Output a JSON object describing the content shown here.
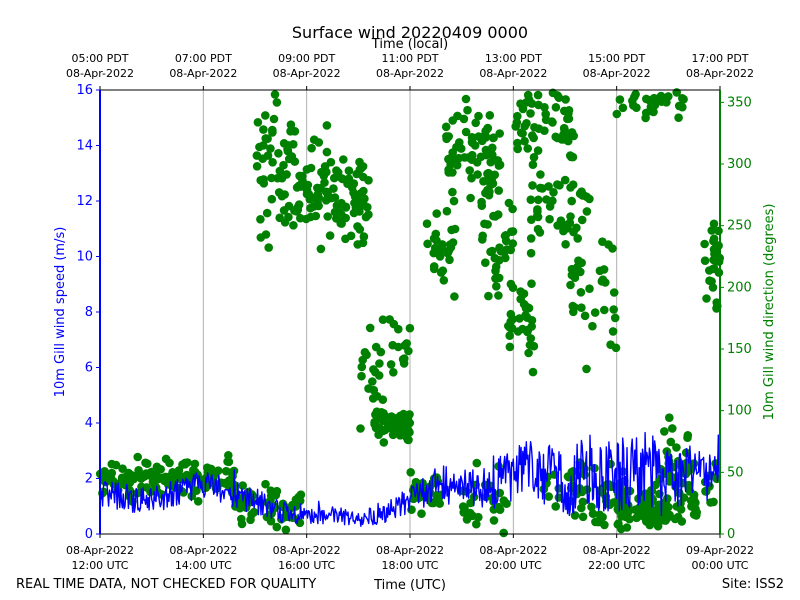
{
  "chart_data": {
    "type": "line+scatter",
    "title": "Surface wind 20220409 0000",
    "top_axis_label": "Time (local)",
    "xlabel": "Time (UTC)",
    "ylabel_left": "10m Gill wind speed (m/s)",
    "ylabel_right": "10m Gill wind direction (degrees)",
    "footer_left": "REAL TIME DATA, NOT CHECKED FOR QUALITY",
    "footer_right": "Site: ISS2",
    "x_range_hours": [
      12,
      24
    ],
    "ylim_left": [
      0,
      16
    ],
    "ylim_right": [
      0,
      360
    ],
    "grid": "vertical",
    "colors": {
      "speed": "#0000ff",
      "direction": "#008000",
      "axis": "#000000",
      "grid": "#b0b0b0"
    },
    "bottom_ticks": [
      {
        "t": 12,
        "date": "08-Apr-2022",
        "time": "12:00 UTC"
      },
      {
        "t": 14,
        "date": "08-Apr-2022",
        "time": "14:00 UTC"
      },
      {
        "t": 16,
        "date": "08-Apr-2022",
        "time": "16:00 UTC"
      },
      {
        "t": 18,
        "date": "08-Apr-2022",
        "time": "18:00 UTC"
      },
      {
        "t": 20,
        "date": "08-Apr-2022",
        "time": "20:00 UTC"
      },
      {
        "t": 22,
        "date": "08-Apr-2022",
        "time": "22:00 UTC"
      },
      {
        "t": 24,
        "date": "09-Apr-2022",
        "time": "00:00 UTC"
      }
    ],
    "top_ticks": [
      {
        "t": 12,
        "time": "05:00 PDT",
        "date": "08-Apr-2022"
      },
      {
        "t": 14,
        "time": "07:00 PDT",
        "date": "08-Apr-2022"
      },
      {
        "t": 16,
        "time": "09:00 PDT",
        "date": "08-Apr-2022"
      },
      {
        "t": 18,
        "time": "11:00 PDT",
        "date": "08-Apr-2022"
      },
      {
        "t": 20,
        "time": "13:00 PDT",
        "date": "08-Apr-2022"
      },
      {
        "t": 22,
        "time": "15:00 PDT",
        "date": "08-Apr-2022"
      },
      {
        "t": 24,
        "time": "17:00 PDT",
        "date": "08-Apr-2022"
      }
    ],
    "left_ticks": [
      0,
      2,
      4,
      6,
      8,
      10,
      12,
      14,
      16
    ],
    "right_ticks": [
      0,
      50,
      100,
      150,
      200,
      250,
      300,
      350
    ],
    "speed_series": {
      "name": "Wind speed (m/s)",
      "t": [
        12.0,
        12.5,
        13.0,
        13.5,
        14.0,
        14.5,
        15.0,
        15.5,
        16.0,
        16.5,
        17.0,
        17.5,
        18.0,
        18.5,
        19.0,
        19.5,
        20.0,
        20.5,
        21.0,
        21.5,
        22.0,
        22.5,
        23.0,
        23.5,
        24.0
      ],
      "v": [
        1.5,
        1.3,
        1.2,
        1.5,
        1.8,
        1.5,
        1.2,
        0.8,
        0.6,
        0.7,
        0.5,
        0.8,
        1.2,
        1.8,
        1.7,
        1.6,
        2.2,
        2.3,
        1.7,
        2.4,
        1.9,
        2.6,
        1.8,
        2.3,
        1.9
      ],
      "amp": [
        0.5,
        0.5,
        0.5,
        0.5,
        0.5,
        0.5,
        0.5,
        0.4,
        0.3,
        0.3,
        0.3,
        0.4,
        0.5,
        0.7,
        0.7,
        0.8,
        1.0,
        1.2,
        1.1,
        1.4,
        1.4,
        1.5,
        1.3,
        1.0,
        0.8
      ]
    },
    "direction_series": {
      "name": "Wind direction (degrees)",
      "clusters": [
        {
          "t0": 12.0,
          "t1": 14.6,
          "mean": 45,
          "spread": 12,
          "count": 150
        },
        {
          "t0": 14.6,
          "t1": 15.4,
          "mean": 25,
          "spread": 14,
          "count": 45
        },
        {
          "t0": 15.0,
          "t1": 15.8,
          "mean": 300,
          "spread": 45,
          "count": 55
        },
        {
          "t0": 15.4,
          "t1": 15.9,
          "mean": 20,
          "spread": 15,
          "count": 22
        },
        {
          "t0": 15.8,
          "t1": 17.2,
          "mean": 275,
          "spread": 30,
          "count": 110
        },
        {
          "t0": 17.0,
          "t1": 17.5,
          "mean": 130,
          "spread": 40,
          "count": 22
        },
        {
          "t0": 17.3,
          "t1": 18.0,
          "mean": 85,
          "spread": 12,
          "count": 50
        },
        {
          "t0": 17.6,
          "t1": 18.0,
          "mean": 150,
          "spread": 25,
          "count": 14
        },
        {
          "t0": 18.0,
          "t1": 18.6,
          "mean": 35,
          "spread": 12,
          "count": 32
        },
        {
          "t0": 18.3,
          "t1": 18.9,
          "mean": 230,
          "spread": 30,
          "count": 28
        },
        {
          "t0": 18.7,
          "t1": 19.8,
          "mean": 305,
          "spread": 35,
          "count": 85
        },
        {
          "t0": 19.0,
          "t1": 19.9,
          "mean": 25,
          "spread": 20,
          "count": 28
        },
        {
          "t0": 19.4,
          "t1": 20.0,
          "mean": 225,
          "spread": 45,
          "count": 35
        },
        {
          "t0": 19.9,
          "t1": 20.4,
          "mean": 175,
          "spread": 25,
          "count": 32
        },
        {
          "t0": 20.0,
          "t1": 21.2,
          "mean": 335,
          "spread": 25,
          "count": 55
        },
        {
          "t0": 20.3,
          "t1": 21.5,
          "mean": 265,
          "spread": 30,
          "count": 45
        },
        {
          "t0": 20.5,
          "t1": 21.6,
          "mean": 40,
          "spread": 22,
          "count": 32
        },
        {
          "t0": 21.1,
          "t1": 22.0,
          "mean": 210,
          "spread": 55,
          "count": 38
        },
        {
          "t0": 21.5,
          "t1": 22.2,
          "mean": 30,
          "spread": 20,
          "count": 35
        },
        {
          "t0": 22.0,
          "t1": 23.0,
          "mean": 20,
          "spread": 14,
          "count": 75
        },
        {
          "t0": 22.0,
          "t1": 23.3,
          "mean": 350,
          "spread": 10,
          "count": 32
        },
        {
          "t0": 22.8,
          "t1": 23.5,
          "mean": 55,
          "spread": 25,
          "count": 35
        },
        {
          "t0": 23.0,
          "t1": 23.6,
          "mean": 25,
          "spread": 14,
          "count": 25
        },
        {
          "t0": 23.7,
          "t1": 24.0,
          "mean": 220,
          "spread": 28,
          "count": 28
        },
        {
          "t0": 23.7,
          "t1": 24.0,
          "mean": 40,
          "spread": 15,
          "count": 12
        }
      ]
    }
  }
}
